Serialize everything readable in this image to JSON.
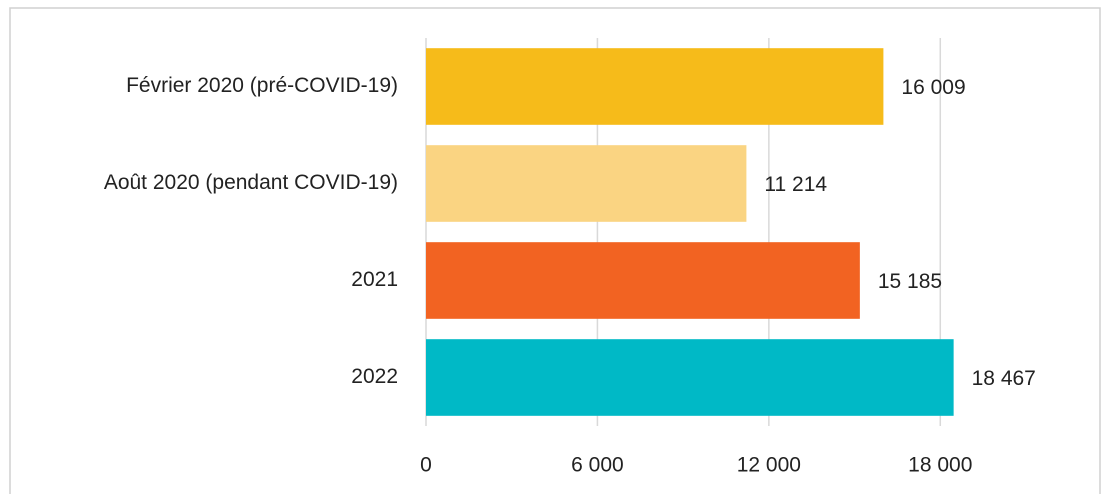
{
  "chart_data": {
    "type": "barh",
    "categories": [
      "Février 2020 (pré-COVID-19)",
      "Août 2020 (pendant COVID-19)",
      "2021",
      "2022"
    ],
    "values": [
      16009,
      11214,
      15185,
      18467
    ],
    "value_labels": [
      "16 009",
      "11 214",
      "15 185",
      "18 467"
    ],
    "colors": [
      "#f6bb1a",
      "#fad482",
      "#f26322",
      "#00b9c6"
    ],
    "xlim": [
      0,
      21000
    ],
    "xticks": [
      0,
      {
        "value": 6000,
        "label": "6 000"
      },
      {
        "value": 12000,
        "label": "12 000"
      },
      {
        "value": 18000,
        "label": "18 000"
      }
    ],
    "grid": true
  }
}
